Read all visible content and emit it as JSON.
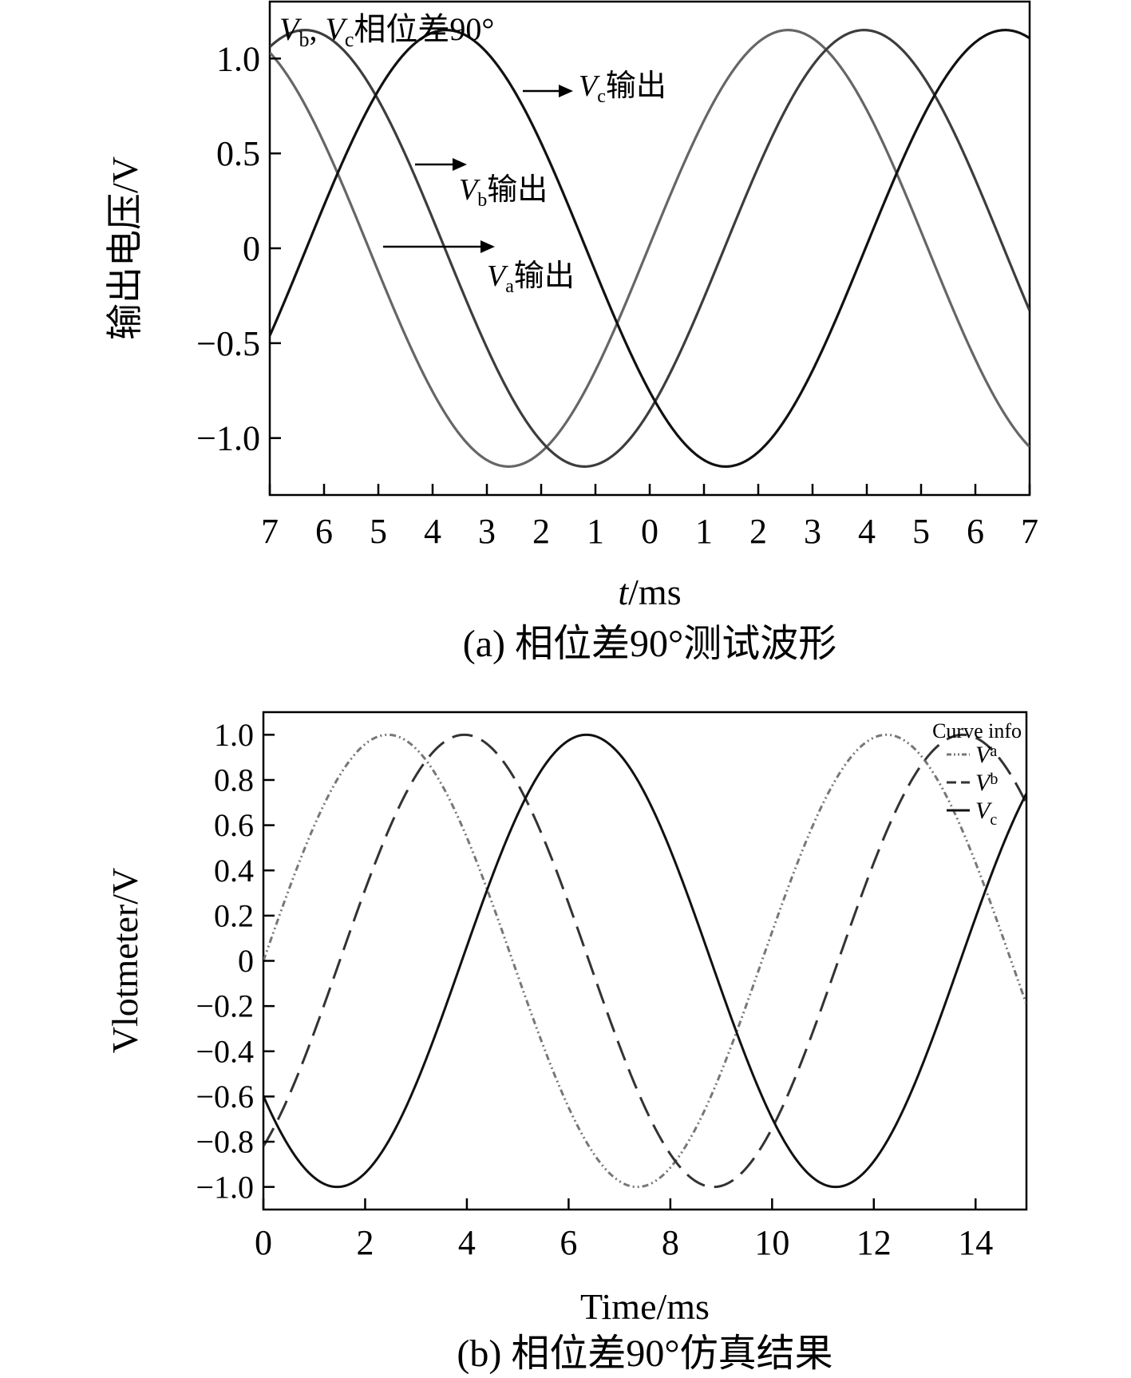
{
  "chart_data": [
    {
      "type": "line",
      "panel_caption": "(a) 相位差90°测试波形",
      "annotation": "Vb, Vc相位差90°",
      "annotation_parts": [
        "V",
        "b",
        ", ",
        "V",
        "c",
        "相位差90°"
      ],
      "xlabel_var": "t",
      "xlabel_unit": "/ms",
      "ylabel": "输出电压/V",
      "x_tick_labels": [
        "7",
        "6",
        "5",
        "4",
        "3",
        "2",
        "1",
        "0",
        "1",
        "2",
        "3",
        "4",
        "5",
        "6",
        "7"
      ],
      "x_tick_values": [
        -7,
        -6,
        -5,
        -4,
        -3,
        -2,
        -1,
        0,
        1,
        2,
        3,
        4,
        5,
        6,
        7
      ],
      "xlim": [
        -7,
        7
      ],
      "y_ticks": [
        1.0,
        0.5,
        0,
        -0.5,
        -1.0
      ],
      "y_tick_labels": [
        "1.0",
        "0.5",
        "0",
        "−0.5",
        "−1.0"
      ],
      "ylim": [
        -1.3,
        1.3
      ],
      "grid": false,
      "series": [
        {
          "label_sym": "V",
          "label_sub": "a",
          "label_text": "输出",
          "amplitude": 1.15,
          "period_ms": 10.3,
          "peak_at_ms": 2.55,
          "color": "#666666"
        },
        {
          "label_sym": "V",
          "label_sub": "b",
          "label_text": "输出",
          "amplitude": 1.15,
          "period_ms": 10.3,
          "peak_at_ms": 3.95,
          "color": "#3d3d3d"
        },
        {
          "label_sym": "V",
          "label_sub": "c",
          "label_text": "输出",
          "amplitude": 1.15,
          "period_ms": 10.3,
          "peak_at_ms": 6.55,
          "color": "#111111"
        }
      ]
    },
    {
      "type": "line",
      "panel_caption": "(b) 相位差90°仿真结果",
      "xlabel": "Time/ms",
      "ylabel": "Vlotmeter/V",
      "xlim": [
        0,
        15
      ],
      "x_ticks": [
        0,
        2,
        4,
        6,
        8,
        10,
        12,
        14
      ],
      "x_tick_labels": [
        "0",
        "2",
        "4",
        "6",
        "8",
        "10",
        "12",
        "14"
      ],
      "ylim": [
        -1.1,
        1.1
      ],
      "y_ticks": [
        1.0,
        0.8,
        0.6,
        0.4,
        0.2,
        0,
        -0.2,
        -0.4,
        -0.6,
        -0.8,
        -1.0
      ],
      "y_tick_labels": [
        "1.0",
        "0.8",
        "0.6",
        "0.4",
        "0.2",
        "0",
        "−0.2",
        "−0.4",
        "−0.6",
        "−0.8",
        "−1.0"
      ],
      "grid": false,
      "legend_title": "Curve info",
      "legend_position": "top-right",
      "series": [
        {
          "label_sym": "V",
          "label_sub": "a",
          "style": "dash-dot-dot",
          "amplitude": 1.0,
          "period_ms": 9.8,
          "peak_at_ms": 2.45,
          "color": "#777777"
        },
        {
          "label_sym": "V",
          "label_sub": "b",
          "style": "dashed",
          "amplitude": 1.0,
          "period_ms": 9.8,
          "peak_at_ms": 3.95,
          "color": "#333333"
        },
        {
          "label_sym": "V",
          "label_sub": "c",
          "style": "solid",
          "amplitude": 1.0,
          "period_ms": 9.8,
          "peak_at_ms": 6.35,
          "color": "#111111"
        }
      ]
    }
  ]
}
